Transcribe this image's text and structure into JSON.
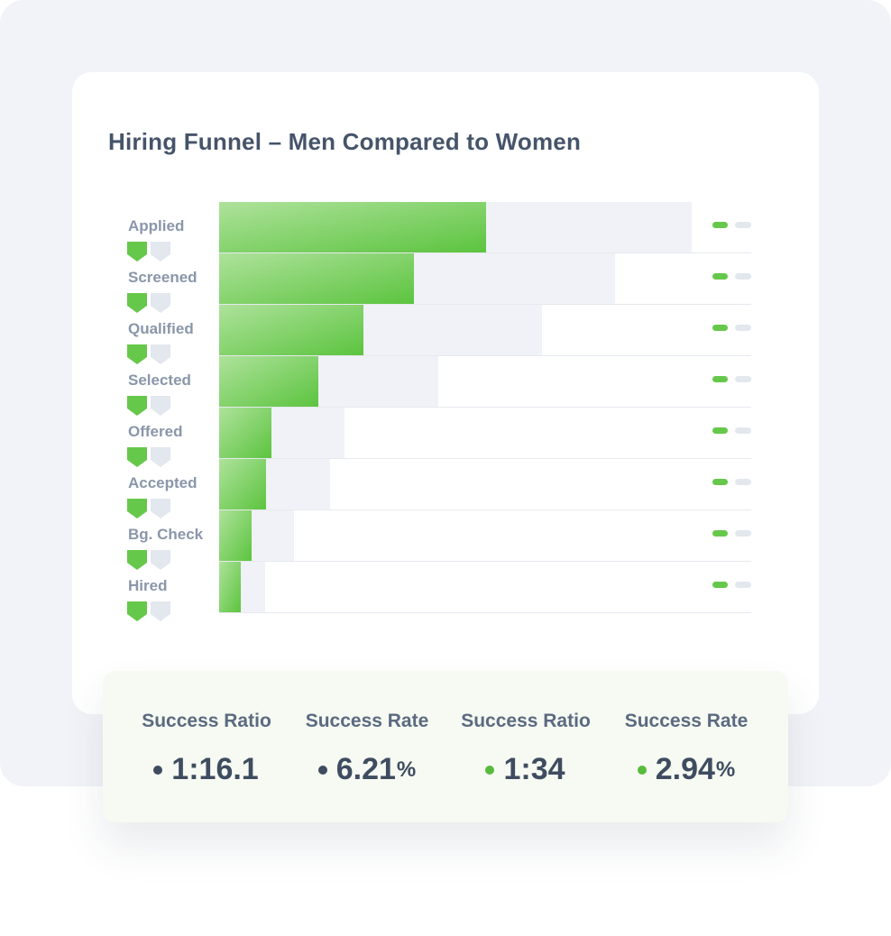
{
  "chart_data": {
    "type": "bar",
    "title": "Hiring Funnel – Men Compared to Women",
    "categories": [
      "Applied",
      "Screened",
      "Qualified",
      "Selected",
      "Offered",
      "Accepted",
      "Bg. Check",
      "Hired"
    ],
    "series": [
      {
        "values": [
          296,
          216,
          160,
          110,
          58,
          52,
          36,
          24
        ],
        "color": "#66c84a"
      },
      {
        "values": [
          524,
          439,
          358,
          243,
          139,
          123,
          83,
          51
        ],
        "color": "#f0f2f7"
      }
    ],
    "xlim": [
      0,
      590
    ],
    "grid": false,
    "legend": "none"
  },
  "colors": {
    "accent_green": "#66c84a",
    "muted_grey": "#e3e7ee",
    "dark_dot": "#3f4c60"
  },
  "stats": [
    {
      "label": "Success Ratio",
      "value": "1:16.1",
      "unit": "",
      "dot_color": "#3f4c60"
    },
    {
      "label": "Success Rate",
      "value": "6.21",
      "unit": "%",
      "dot_color": "#3f4c60"
    },
    {
      "label": "Success Ratio",
      "value": "1:34",
      "unit": "",
      "dot_color": "#59bb3c"
    },
    {
      "label": "Success Rate",
      "value": "2.94",
      "unit": "%",
      "dot_color": "#59bb3c"
    }
  ]
}
